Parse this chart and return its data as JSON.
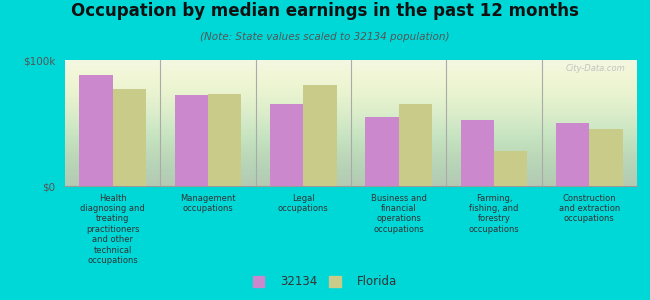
{
  "title": "Occupation by median earnings in the past 12 months",
  "subtitle": "(Note: State values scaled to 32134 population)",
  "background_color": "#00d8d8",
  "categories": [
    "Health\ndiagnosing and\ntreating\npractitioners\nand other\ntechnical\noccupations",
    "Management\noccupations",
    "Legal\noccupations",
    "Business and\nfinancial\noperations\noccupations",
    "Farming,\nfishing, and\nforestry\noccupations",
    "Construction\nand extraction\noccupations"
  ],
  "values_32134": [
    88000,
    72000,
    65000,
    55000,
    52000,
    50000
  ],
  "values_florida": [
    77000,
    73000,
    80000,
    65000,
    28000,
    45000
  ],
  "color_32134": "#cc88cc",
  "color_florida": "#c8cc88",
  "ylim": [
    0,
    100000
  ],
  "ytick_vals": [
    0,
    100000
  ],
  "ytick_labels": [
    "$0",
    "$100k"
  ],
  "legend_labels": [
    "32134",
    "Florida"
  ],
  "bar_width": 0.35,
  "watermark": "City-Data.com"
}
